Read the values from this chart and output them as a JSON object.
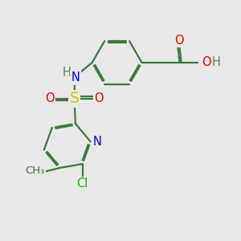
{
  "bg_color": "#e8e8e8",
  "bond_color": "#3d7a3d",
  "bond_width": 1.6,
  "dbo": 0.055,
  "atom_colors": {
    "N": "#0000ee",
    "O": "#ee0000",
    "S": "#cccc00",
    "Cl": "#00bb00",
    "H": "#558855",
    "C": "#3d7a3d"
  },
  "fs": 10.5
}
